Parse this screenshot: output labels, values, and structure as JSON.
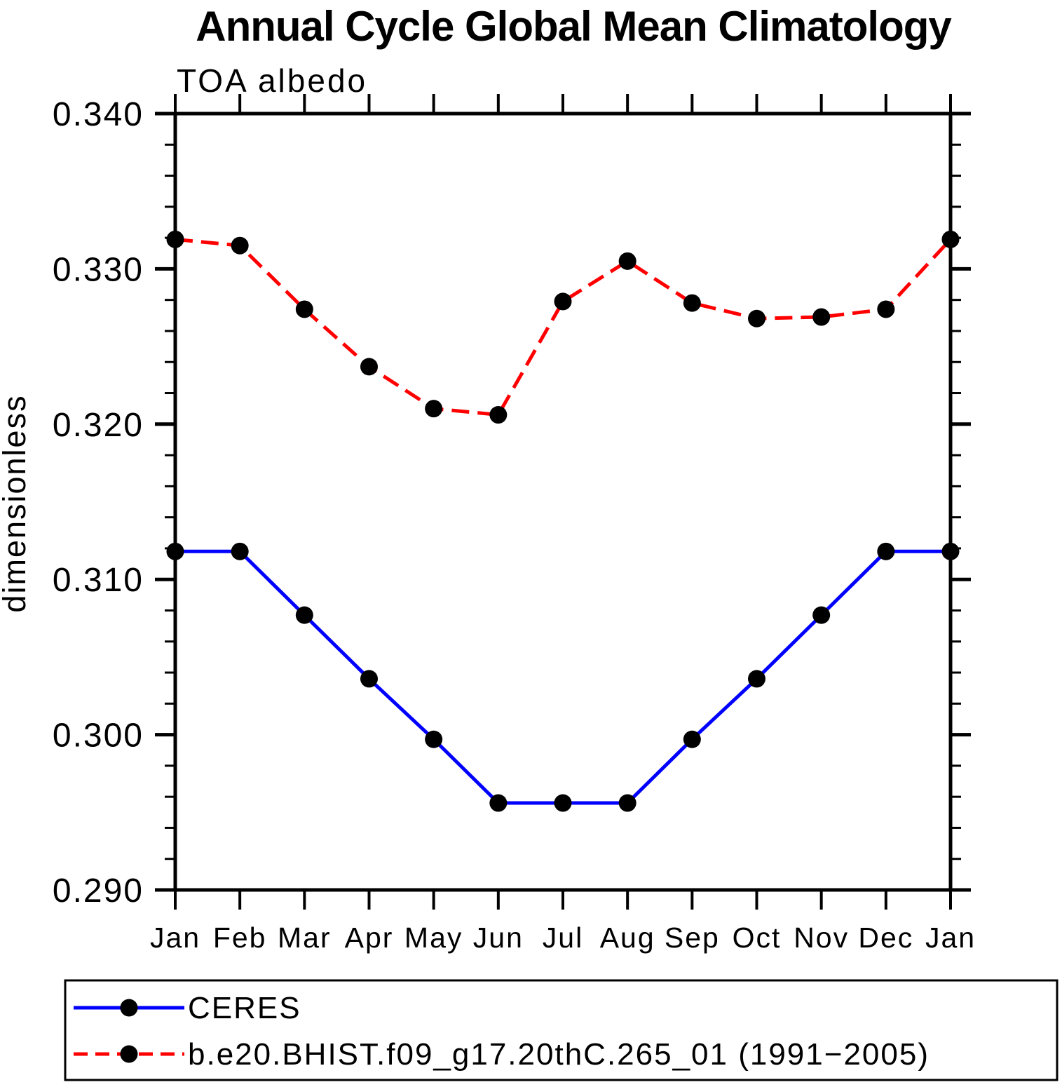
{
  "chart_data": {
    "type": "line",
    "title": "Annual Cycle Global Mean Climatology",
    "subtitle": "TOA albedo",
    "xlabel": "",
    "ylabel": "dimensionless",
    "categories": [
      "Jan",
      "Feb",
      "Mar",
      "Apr",
      "May",
      "Jun",
      "Jul",
      "Aug",
      "Sep",
      "Oct",
      "Nov",
      "Dec",
      "Jan"
    ],
    "ylim": [
      0.29,
      0.34
    ],
    "ytick_labels": [
      "0.290",
      "0.300",
      "0.310",
      "0.320",
      "0.330",
      "0.340"
    ],
    "ytick_major_interval": 0.01,
    "ytick_minor_interval": 0.002,
    "grid": false,
    "legend_position": "bottom-boxed",
    "axis_color": "#000000",
    "marker_color": "#000000",
    "series": [
      {
        "name": "CERES",
        "color": "#0000ff",
        "style": "solid",
        "marker": "circle",
        "values": [
          0.3118,
          0.3118,
          0.3077,
          0.3036,
          0.2997,
          0.2956,
          0.2956,
          0.2956,
          0.2997,
          0.3036,
          0.3077,
          0.3118,
          0.3118
        ]
      },
      {
        "name": "b.e20.BHIST.f09_g17.20thC.265_01 (1991−2005)",
        "color": "#ff0000",
        "style": "dashed",
        "marker": "circle",
        "values": [
          0.3319,
          0.3315,
          0.3274,
          0.3237,
          0.321,
          0.3206,
          0.3279,
          0.3305,
          0.3278,
          0.3268,
          0.3269,
          0.3274,
          0.3319
        ]
      }
    ]
  }
}
